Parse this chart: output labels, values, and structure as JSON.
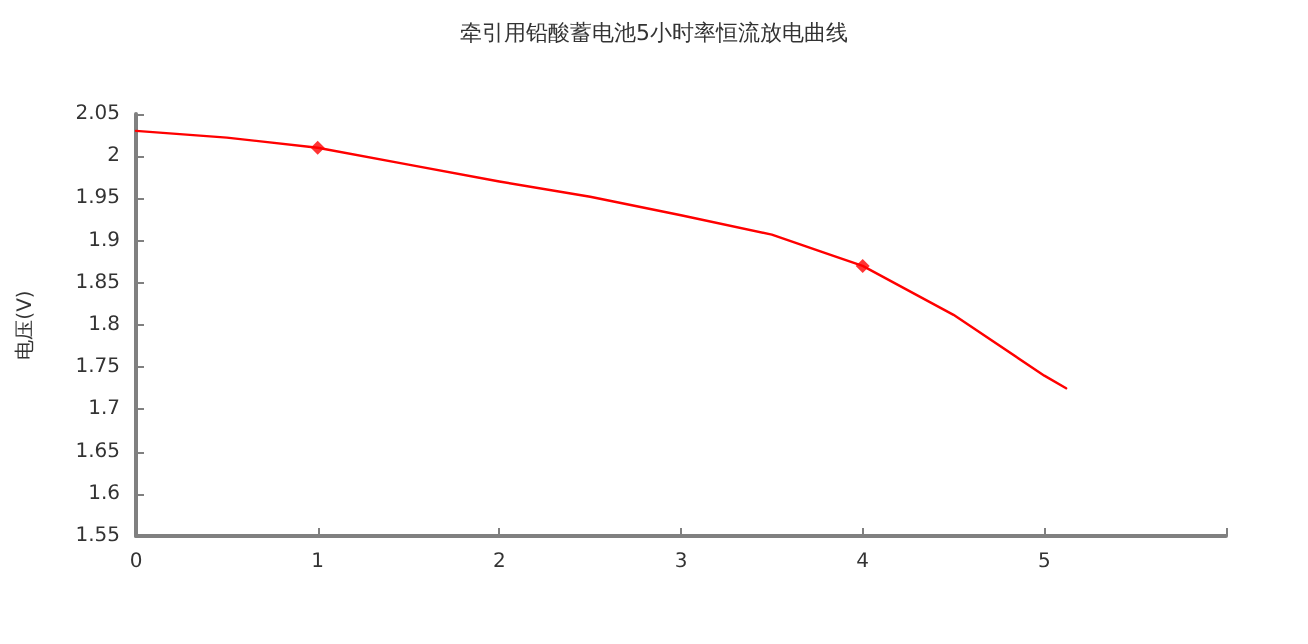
{
  "chart_data": {
    "type": "line",
    "title": "牵引用铅酸蓄电池5小时率恒流放电曲线",
    "ylabel": "电压(V)",
    "series": [
      {
        "color": "#ff0000",
        "marker": "none",
        "x": [
          0,
          0.5,
          1,
          1.5,
          2,
          2.5,
          3,
          3.5,
          4,
          4.5,
          5,
          5.12
        ],
        "values": [
          2.03,
          2.022,
          2.01,
          1.99,
          1.97,
          1.952,
          1.93,
          1.907,
          1.87,
          1.812,
          1.74,
          1.725
        ]
      },
      {
        "type": "scatter",
        "color": "#ff0000",
        "marker": "diamond",
        "x": [
          1,
          4
        ],
        "values": [
          2.01,
          1.87
        ]
      }
    ],
    "xlim": [
      0,
      6
    ],
    "xticks": [
      0,
      1,
      2,
      3,
      4,
      5,
      {
        "value": 6,
        "label": null
      }
    ],
    "ylim": [
      1.55,
      2.05
    ],
    "yticks": [
      1.55,
      1.6,
      1.65,
      1.7,
      1.75,
      1.8,
      1.85,
      1.9,
      1.95,
      2,
      2.05
    ],
    "grid": false
  }
}
